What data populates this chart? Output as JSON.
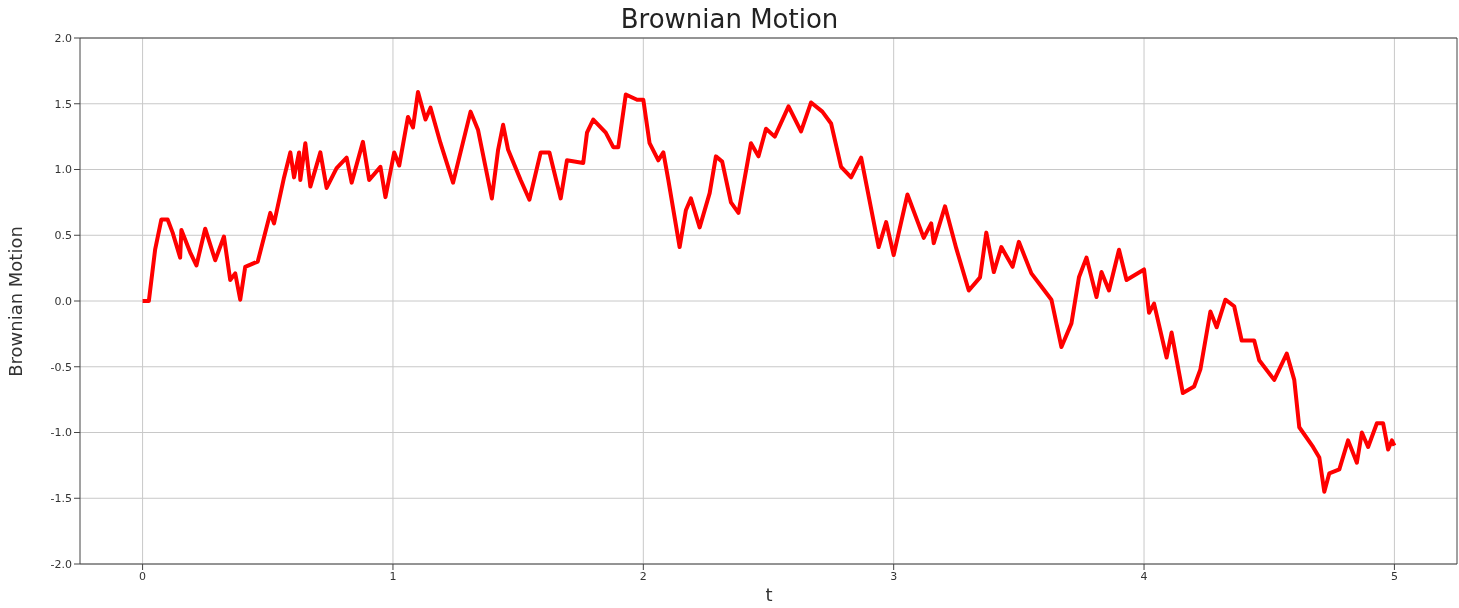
{
  "chart_data": {
    "type": "line",
    "title": "Brownian Motion",
    "xlabel": "t",
    "ylabel": "Brownian Motion",
    "x": [
      0,
      0.025,
      0.05,
      0.075,
      0.1,
      0.12,
      0.15,
      0.155,
      0.19,
      0.215,
      0.25,
      0.29,
      0.325,
      0.35,
      0.37,
      0.39,
      0.41,
      0.46,
      0.51,
      0.525,
      0.565,
      0.59,
      0.605,
      0.625,
      0.63,
      0.65,
      0.67,
      0.71,
      0.735,
      0.775,
      0.815,
      0.835,
      0.88,
      0.905,
      0.95,
      0.97,
      1.005,
      1.025,
      1.06,
      1.08,
      1.1,
      1.13,
      1.15,
      1.19,
      1.24,
      1.275,
      1.31,
      1.34,
      1.395,
      1.42,
      1.44,
      1.46,
      1.51,
      1.545,
      1.59,
      1.625,
      1.67,
      1.695,
      1.76,
      1.775,
      1.8,
      1.85,
      1.88,
      1.9,
      1.93,
      1.975,
      2.0,
      2.025,
      2.06,
      2.08,
      2.1,
      2.145,
      2.17,
      2.19,
      2.225,
      2.265,
      2.29,
      2.315,
      2.35,
      2.38,
      2.43,
      2.46,
      2.49,
      2.525,
      2.58,
      2.63,
      2.67,
      2.715,
      2.75,
      2.79,
      2.83,
      2.87,
      2.94,
      2.97,
      3.0,
      3.055,
      3.12,
      3.15,
      3.16,
      3.205,
      3.25,
      3.3,
      3.345,
      3.37,
      3.4,
      3.43,
      3.475,
      3.5,
      3.55,
      3.59,
      3.63,
      3.67,
      3.71,
      3.74,
      3.77,
      3.81,
      3.83,
      3.86,
      3.9,
      3.93,
      4.0,
      4.02,
      4.04,
      4.09,
      4.11,
      4.155,
      4.2,
      4.225,
      4.265,
      4.29,
      4.325,
      4.36,
      4.39,
      4.44,
      4.46,
      4.52,
      4.57,
      4.6,
      4.62,
      4.675,
      4.7,
      4.72,
      4.74,
      4.78,
      4.815,
      4.85,
      4.87,
      4.895,
      4.93,
      4.955,
      4.975,
      4.99,
      5.0
    ],
    "series": [
      {
        "color": "#ff0000",
        "values": [
          0,
          0,
          0.39,
          0.62,
          0.62,
          0.52,
          0.33,
          0.54,
          0.37,
          0.27,
          0.55,
          0.31,
          0.49,
          0.16,
          0.21,
          0.01,
          0.26,
          0.3,
          0.67,
          0.59,
          0.94,
          1.13,
          0.94,
          1.13,
          0.92,
          1.2,
          0.87,
          1.13,
          0.86,
          1.01,
          1.09,
          0.9,
          1.21,
          0.92,
          1.02,
          0.79,
          1.13,
          1.03,
          1.4,
          1.32,
          1.59,
          1.38,
          1.47,
          1.2,
          0.9,
          1.17,
          1.44,
          1.3,
          0.78,
          1.15,
          1.34,
          1.15,
          0.92,
          0.77,
          1.13,
          1.13,
          0.78,
          1.07,
          1.05,
          1.28,
          1.38,
          1.28,
          1.17,
          1.17,
          1.57,
          1.53,
          1.53,
          1.2,
          1.07,
          1.13,
          0.92,
          0.41,
          0.69,
          0.78,
          0.56,
          0.82,
          1.1,
          1.06,
          0.75,
          0.67,
          1.2,
          1.1,
          1.31,
          1.25,
          1.48,
          1.29,
          1.51,
          1.44,
          1.35,
          1.02,
          0.94,
          1.09,
          0.41,
          0.6,
          0.35,
          0.81,
          0.48,
          0.59,
          0.44,
          0.72,
          0.4,
          0.08,
          0.18,
          0.52,
          0.22,
          0.41,
          0.26,
          0.45,
          0.21,
          0.11,
          0.01,
          -0.35,
          -0.17,
          0.18,
          0.33,
          0.03,
          0.22,
          0.08,
          0.39,
          0.16,
          0.24,
          -0.09,
          -0.02,
          -0.43,
          -0.24,
          -0.7,
          -0.65,
          -0.52,
          -0.08,
          -0.2,
          0.01,
          -0.04,
          -0.3,
          -0.3,
          -0.45,
          -0.6,
          -0.4,
          -0.6,
          -0.96,
          -1.11,
          -1.19,
          -1.45,
          -1.31,
          -1.28,
          -1.06,
          -1.23,
          -1,
          -1.11,
          -0.93,
          -0.93,
          -1.13,
          -1.06,
          -1.1
        ]
      }
    ],
    "xlim": [
      -0.25,
      5.25
    ],
    "xticks": [
      0,
      1,
      2,
      3,
      4,
      5
    ],
    "ylim": [
      -2,
      2
    ],
    "yticks": [
      {
        "value": -2,
        "label": "-2.0"
      },
      {
        "value": -1.5,
        "label": "-1.5"
      },
      {
        "value": -1,
        "label": "-1.0"
      },
      {
        "value": -0.5,
        "label": "-0.5"
      },
      {
        "value": 0,
        "label": "0.0"
      },
      {
        "value": 0.5,
        "label": "0.5"
      },
      {
        "value": 1,
        "label": "1.0"
      },
      {
        "value": 1.5,
        "label": "1.5"
      },
      {
        "value": 2,
        "label": "2.0"
      }
    ],
    "grid": true,
    "legend": false
  }
}
